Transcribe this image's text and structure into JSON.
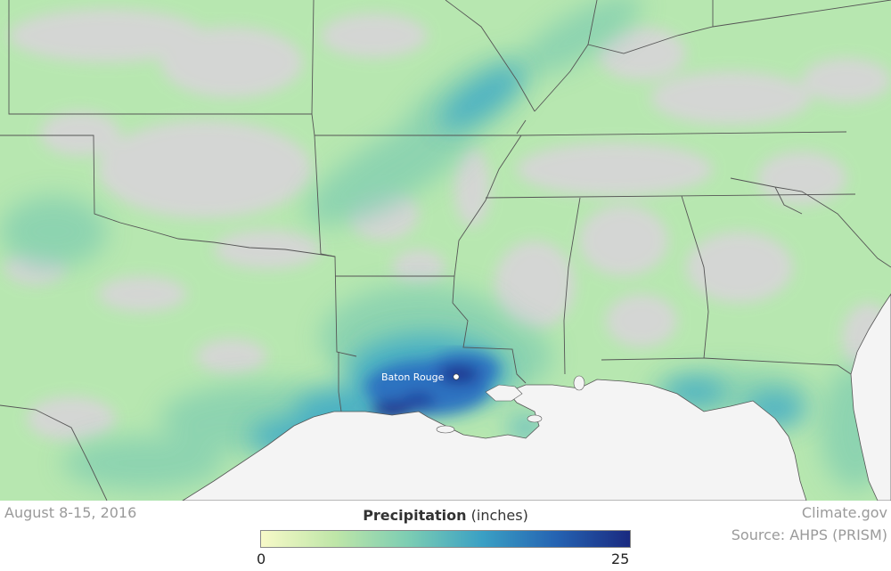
{
  "map": {
    "city": {
      "name": "Baton Rouge"
    },
    "colors": {
      "dry": "#d6d6d6",
      "light": "#b7e7b0",
      "moderate": "#86d0b0",
      "heavy": "#3aa8c8",
      "very_heavy": "#2a6cc0",
      "extreme": "#1f2f8a",
      "water": "#f4f4f4",
      "border": "#555555"
    }
  },
  "footer": {
    "date": "August 8-15, 2016",
    "credit": "Climate.gov",
    "source": "Source: AHPS (PRISM)"
  },
  "legend": {
    "title_bold": "Precipitation",
    "title_unit": "(inches)",
    "min": "0",
    "max": "25",
    "gradient": [
      "#f7f9c8",
      "#bfe6a8",
      "#7ccdb3",
      "#3aa0c4",
      "#2563b2",
      "#1a2a80"
    ]
  }
}
